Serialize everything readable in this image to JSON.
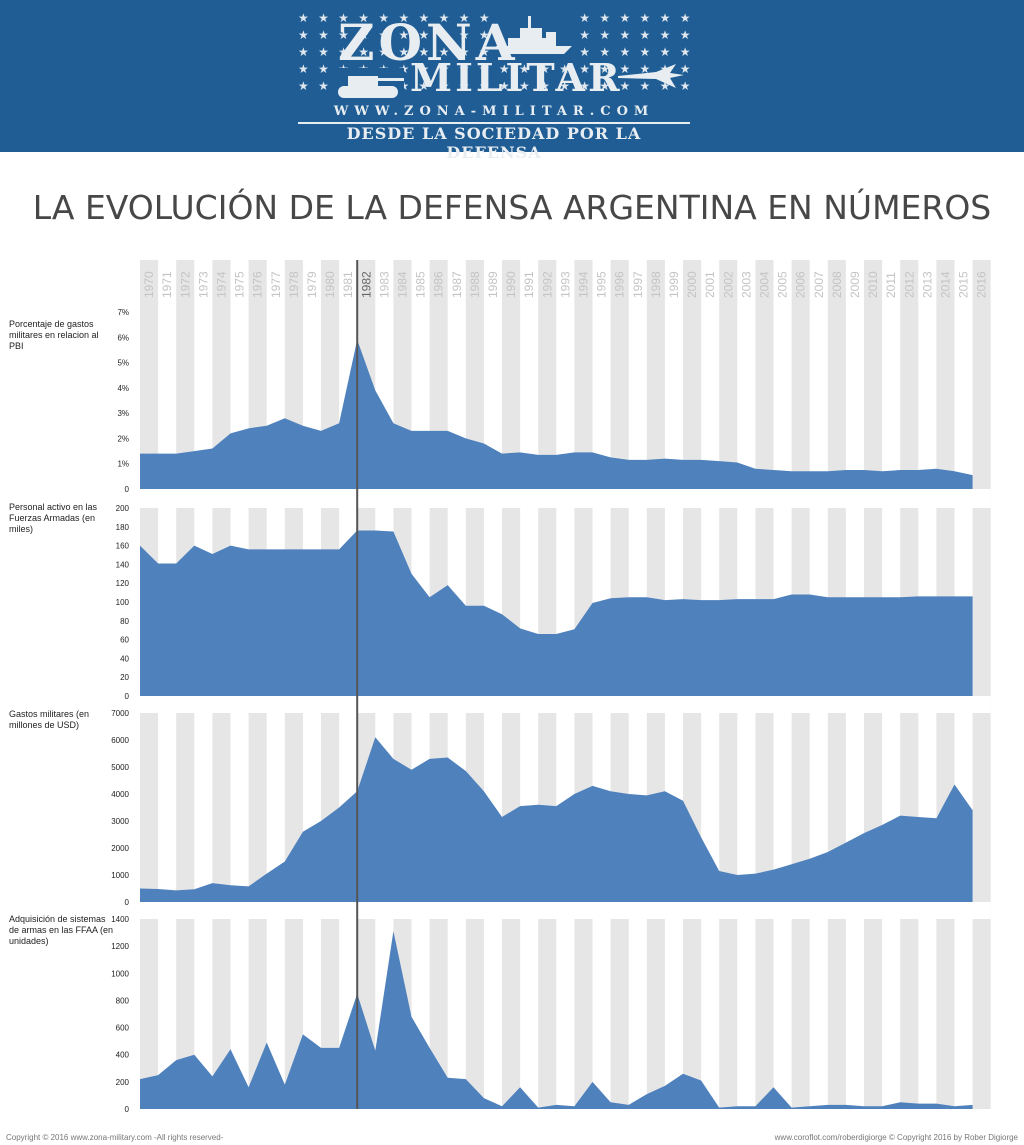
{
  "header": {
    "logo_name_top": "ZONA",
    "logo_name_bottom": "MILITAR",
    "logo_url": "WWW.ZONA-MILITAR.COM",
    "tagline": "DESDE LA SOCIEDAD POR LA DEFENSA",
    "bg_color": "#1f5d94"
  },
  "title": "LA EVOLUCIÓN DE LA DEFENSA ARGENTINA EN NÚMEROS",
  "footer": {
    "left": "Copyright © 2016 www.zona-military.com  -All rights reserved-",
    "right": "www.coroflot.com/roberdigiorge  © Copyright 2016 by Rober Digiorge"
  },
  "chart_data": {
    "type": "area",
    "years": [
      1970,
      1971,
      1972,
      1973,
      1974,
      1975,
      1976,
      1977,
      1978,
      1979,
      1980,
      1981,
      1982,
      1983,
      1984,
      1985,
      1986,
      1987,
      1988,
      1989,
      1990,
      1991,
      1992,
      1993,
      1994,
      1995,
      1996,
      1997,
      1998,
      1999,
      2000,
      2001,
      2002,
      2003,
      2004,
      2005,
      2006,
      2007,
      2008,
      2009,
      2010,
      2011,
      2012,
      2013,
      2014,
      2015,
      2016
    ],
    "highlight_year": 1982,
    "fill_color": "#4f81bd",
    "panels": [
      {
        "label": "Porcentaje de gastos militares en relacion al PBI",
        "ticks": [
          "0",
          "1%",
          "2%",
          "3%",
          "4%",
          "5%",
          "6%",
          "7%"
        ],
        "ylim": [
          0,
          7
        ],
        "values": [
          1.4,
          1.4,
          1.4,
          1.5,
          1.6,
          2.2,
          2.4,
          2.5,
          2.8,
          2.5,
          2.3,
          2.6,
          5.9,
          3.9,
          2.6,
          2.3,
          2.3,
          2.3,
          2.0,
          1.8,
          1.4,
          1.45,
          1.35,
          1.35,
          1.45,
          1.45,
          1.25,
          1.15,
          1.15,
          1.2,
          1.15,
          1.15,
          1.1,
          1.05,
          0.8,
          0.75,
          0.7,
          0.7,
          0.7,
          0.75,
          0.75,
          0.7,
          0.75,
          0.75,
          0.8,
          0.7,
          0.55
        ]
      },
      {
        "label": "Personal activo en las Fuerzas Armadas (en miles)",
        "ticks": [
          "0",
          "20",
          "40",
          "60",
          "80",
          "100",
          "120",
          "140",
          "160",
          "180",
          "200"
        ],
        "ylim": [
          0,
          200
        ],
        "values": [
          160,
          141,
          141,
          160,
          151,
          160,
          156,
          156,
          156,
          156,
          156,
          156,
          176,
          176,
          175,
          130,
          105,
          118,
          96,
          96,
          87,
          72,
          66,
          66,
          71,
          99,
          104,
          105,
          105,
          102,
          103,
          102,
          102,
          103,
          103,
          103,
          108,
          108,
          105,
          105,
          105,
          105,
          105,
          106,
          106,
          106,
          106
        ]
      },
      {
        "label": "Gastos militares (en millones de USD)",
        "ticks": [
          "0",
          "1000",
          "2000",
          "3000",
          "4000",
          "5000",
          "6000",
          "7000"
        ],
        "ylim": [
          0,
          7000
        ],
        "values": [
          500,
          480,
          430,
          470,
          700,
          620,
          580,
          1050,
          1500,
          2600,
          3000,
          3500,
          4100,
          6100,
          5300,
          4900,
          5300,
          5350,
          4850,
          4100,
          3150,
          3550,
          3600,
          3550,
          4000,
          4300,
          4100,
          4000,
          3950,
          4100,
          3750,
          2400,
          1150,
          1000,
          1050,
          1200,
          1400,
          1600,
          1850,
          2200,
          2550,
          2850,
          3200,
          3150,
          3100,
          4350,
          3400
        ]
      },
      {
        "label": "Adquisición de sistemas de armas en las FFAA (en unidades)",
        "ticks": [
          "0",
          "200",
          "400",
          "600",
          "800",
          "1000",
          "1200",
          "1400"
        ],
        "ylim": [
          0,
          1400
        ],
        "values": [
          220,
          250,
          360,
          400,
          240,
          440,
          160,
          490,
          180,
          550,
          450,
          450,
          850,
          430,
          1310,
          680,
          450,
          230,
          220,
          80,
          20,
          160,
          10,
          30,
          20,
          200,
          50,
          30,
          110,
          170,
          260,
          210,
          10,
          20,
          20,
          160,
          10,
          20,
          30,
          30,
          20,
          20,
          50,
          40,
          40,
          20,
          30
        ]
      }
    ]
  }
}
